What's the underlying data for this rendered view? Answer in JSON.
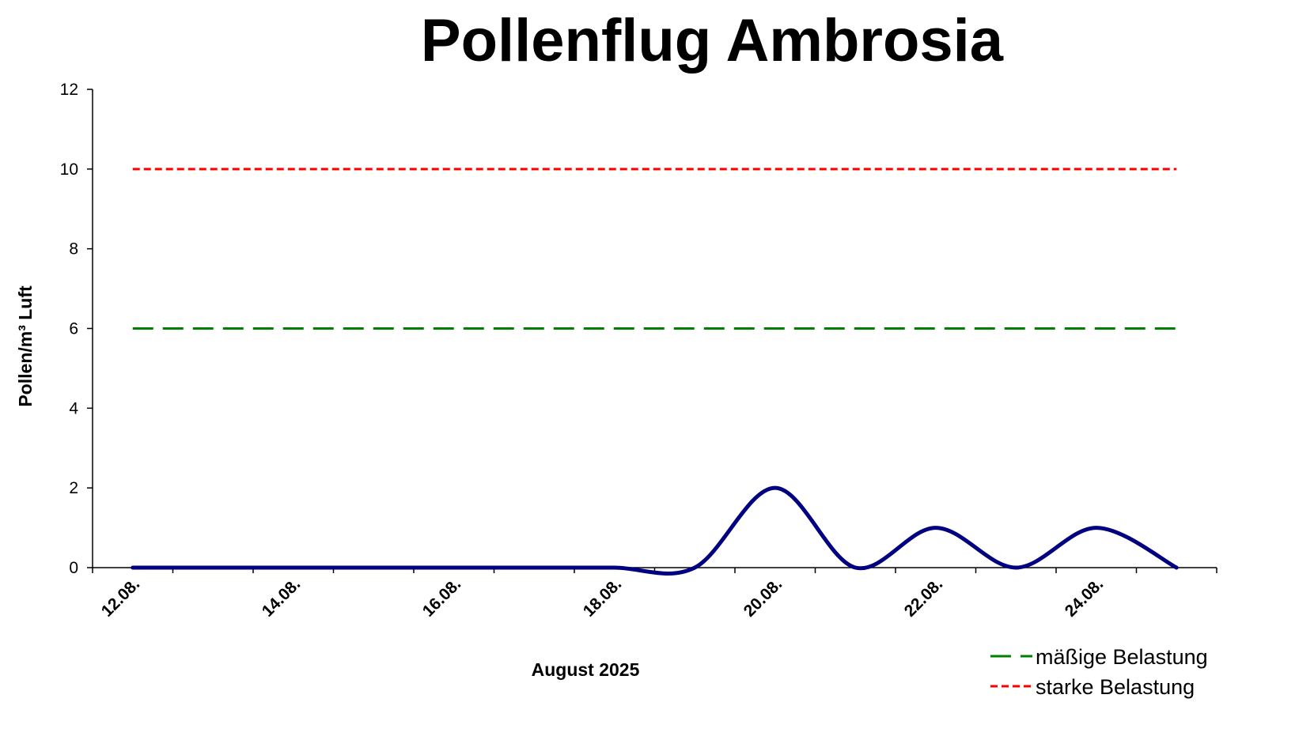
{
  "chart_data": {
    "type": "line",
    "title": "Pollenflug Ambrosia",
    "xlabel": "August 2025",
    "ylabel": "Pollen/m³ Luft",
    "ylim": [
      0,
      12
    ],
    "yticks": [
      0,
      2,
      4,
      6,
      8,
      10,
      12
    ],
    "x_tick_labels": [
      "12.08.",
      "14.08.",
      "16.08.",
      "18.08.",
      "20.08.",
      "22.08.",
      "24.08."
    ],
    "x": [
      "12.08.",
      "13.08.",
      "14.08.",
      "15.08.",
      "16.08.",
      "17.08.",
      "18.08.",
      "19.08.",
      "20.08.",
      "21.08.",
      "22.08.",
      "23.08.",
      "24.08.",
      "25.08."
    ],
    "series": [
      {
        "values": [
          0,
          0,
          0,
          0,
          0,
          0,
          0,
          0,
          2,
          0,
          1,
          0,
          1,
          0
        ],
        "color": "#000080",
        "style": "solid-smoothed"
      },
      {
        "name": "mäßige Belastung",
        "values": [
          6,
          6,
          6,
          6,
          6,
          6,
          6,
          6,
          6,
          6,
          6,
          6,
          6,
          6
        ],
        "color": "#008000",
        "style": "long-dash"
      },
      {
        "name": "starke Belastung",
        "values": [
          10,
          10,
          10,
          10,
          10,
          10,
          10,
          10,
          10,
          10,
          10,
          10,
          10,
          10
        ],
        "color": "#ff0000",
        "style": "short-dash"
      }
    ],
    "grid": false,
    "legend_position": "bottom-right"
  }
}
